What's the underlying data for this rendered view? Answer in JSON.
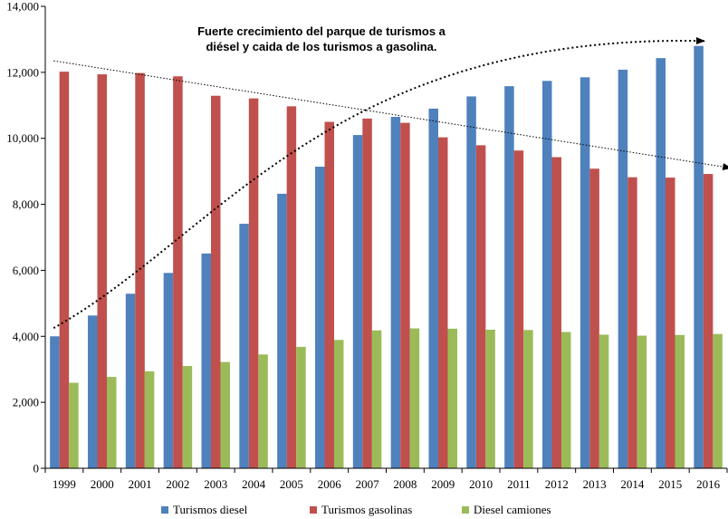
{
  "chart_data": {
    "type": "bar",
    "categories": [
      "1999",
      "2000",
      "2001",
      "2002",
      "2003",
      "2004",
      "2005",
      "2006",
      "2007",
      "2008",
      "2009",
      "2010",
      "2011",
      "2012",
      "2013",
      "2014",
      "2015",
      "2016"
    ],
    "series": [
      {
        "name": "Turismos diesel",
        "color": "#4F81BD",
        "values": [
          4000,
          4630,
          5290,
          5920,
          6510,
          7410,
          8320,
          9140,
          10100,
          10650,
          10900,
          11270,
          11580,
          11740,
          11850,
          12080,
          12430,
          12800
        ]
      },
      {
        "name": "Turismos gasolinas",
        "color": "#C0504D",
        "values": [
          12020,
          11940,
          11980,
          11880,
          11290,
          11210,
          10970,
          10500,
          10600,
          10470,
          10030,
          9790,
          9630,
          9430,
          9080,
          8820,
          8810,
          8920
        ]
      },
      {
        "name": "Diesel camiones",
        "color": "#9BBB59",
        "values": [
          2590,
          2770,
          2940,
          3100,
          3220,
          3450,
          3680,
          3890,
          4180,
          4240,
          4230,
          4200,
          4190,
          4130,
          4050,
          4020,
          4040,
          4070
        ]
      }
    ],
    "ylim": [
      0,
      14000
    ],
    "yticks": [
      "0",
      "2,000",
      "4,000",
      "6,000",
      "8,000",
      "10,000",
      "12,000",
      "14,000"
    ],
    "ytick_values": [
      0,
      2000,
      4000,
      6000,
      8000,
      10000,
      12000,
      14000
    ],
    "title": "",
    "xlabel": "",
    "ylabel": "",
    "legend_position": "bottom",
    "annotation": "Fuerte crecimiento del parque de turismos a diésel y caida de los turismos a gasolina.",
    "trend_gasolina": {
      "from": [
        "1999",
        12350
      ],
      "to": [
        "2016",
        9100
      ]
    },
    "trend_diesel": {
      "from": [
        "1999",
        4250
      ],
      "to": [
        "2016",
        12950
      ]
    }
  }
}
